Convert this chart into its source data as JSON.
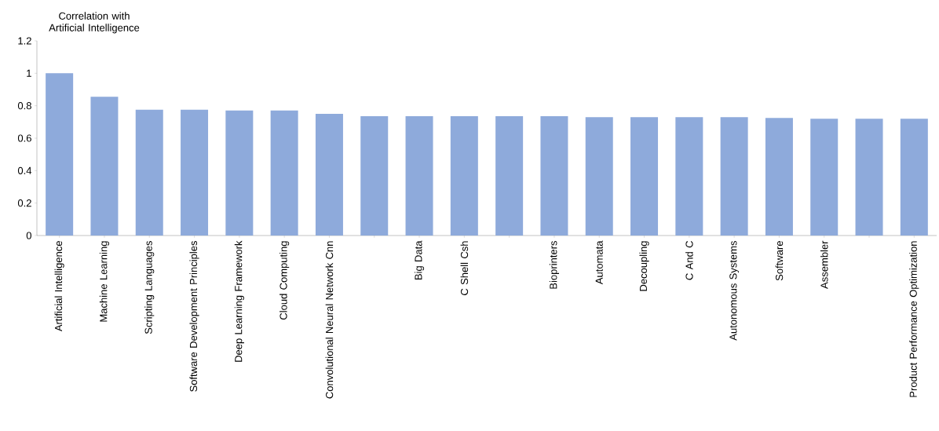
{
  "chart_data": {
    "type": "bar",
    "ylabel": "Correlation with Artificial Intelligence",
    "categories": [
      "Artificial Intelligence",
      "Machine Learning",
      "Scripting Languages",
      "Software Development Principles",
      "Deep Learning Framework",
      "Cloud Computing",
      "Convolutional Neural Network Cnn",
      null,
      "Big Data",
      "C Shell Csh",
      null,
      "Bioprinters",
      "Automata",
      "Decoupling",
      "C And C",
      "Autonomous Systems",
      "Software",
      "Assembler",
      null,
      "Product Performance Optimization"
    ],
    "values": [
      1.0,
      0.855,
      0.775,
      0.775,
      0.77,
      0.77,
      0.75,
      0.735,
      0.735,
      0.735,
      0.735,
      0.735,
      0.73,
      0.73,
      0.73,
      0.73,
      0.725,
      0.72,
      0.72,
      0.72
    ],
    "color": "#8eaadb",
    "ylim": [
      0,
      1.2
    ],
    "yticks": [
      0,
      0.2,
      0.4,
      0.6,
      0.8,
      1,
      1.2
    ],
    "grid": false
  }
}
